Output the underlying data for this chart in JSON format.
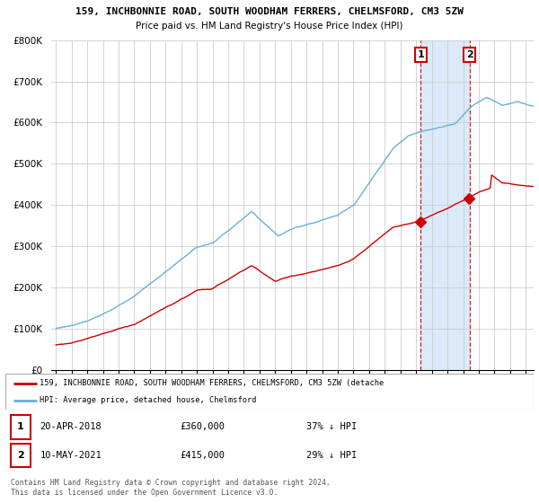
{
  "title_line1": "159, INCHBONNIE ROAD, SOUTH WOODHAM FERRERS, CHELMSFORD, CM3 5ZW",
  "title_line2": "Price paid vs. HM Land Registry's House Price Index (HPI)",
  "ylim": [
    0,
    800000
  ],
  "yticks": [
    0,
    100000,
    200000,
    300000,
    400000,
    500000,
    600000,
    700000,
    800000
  ],
  "ytick_labels": [
    "£0",
    "£100K",
    "£200K",
    "£300K",
    "£400K",
    "£500K",
    "£600K",
    "£700K",
    "£800K"
  ],
  "hpi_color": "#6baed6",
  "price_color": "#cc0000",
  "x1_date": 2018.3,
  "x2_date": 2021.4,
  "marker1_value": 360000,
  "marker2_value": 415000,
  "legend_entry1": "159, INCHBONNIE ROAD, SOUTH WOODHAM FERRERS, CHELMSFORD, CM3 5ZW (detache",
  "legend_entry2": "HPI: Average price, detached house, Chelmsford",
  "annotation1_num": "1",
  "annotation1_date": "20-APR-2018",
  "annotation1_price": "£360,000",
  "annotation1_pct": "37% ↓ HPI",
  "annotation2_num": "2",
  "annotation2_date": "10-MAY-2021",
  "annotation2_price": "£415,000",
  "annotation2_pct": "29% ↓ HPI",
  "footnote": "Contains HM Land Registry data © Crown copyright and database right 2024.\nThis data is licensed under the Open Government Licence v3.0.",
  "grid_color": "#cccccc",
  "shaded_color": "#daeaf8",
  "vline_color": "#cc0000",
  "xlim_left": 1995.0,
  "xlim_right": 2025.5
}
